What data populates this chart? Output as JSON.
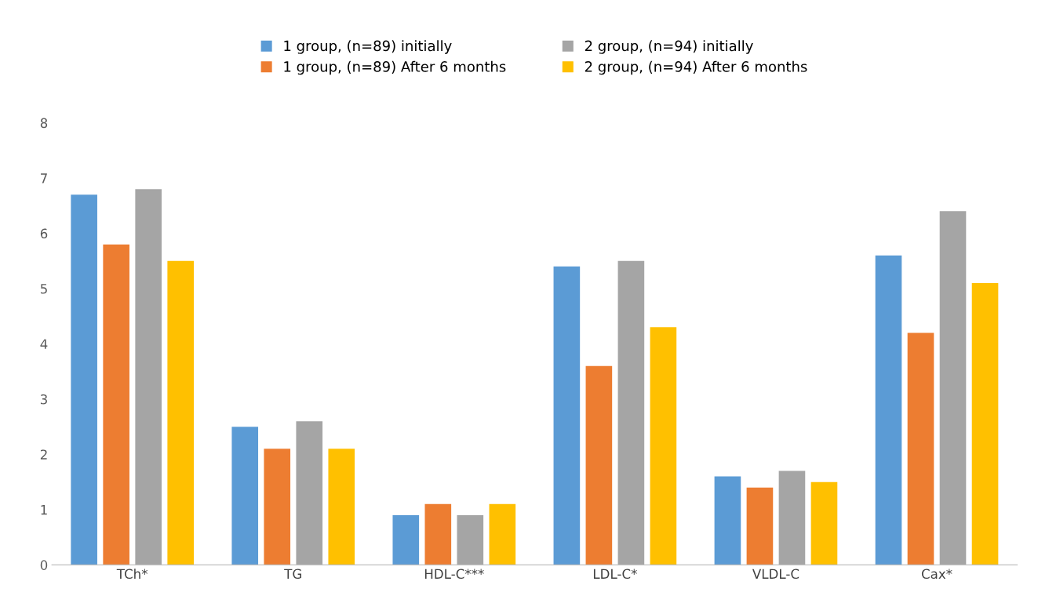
{
  "chart_data": {
    "type": "bar",
    "categories": [
      "TCh*",
      "TG",
      "HDL-C***",
      "LDL-C*",
      "VLDL-C",
      "Cax*"
    ],
    "series": [
      {
        "name": "1 group, (n=89) initially",
        "color": "#5b9bd5",
        "values": [
          6.7,
          2.5,
          0.9,
          5.4,
          1.6,
          5.6
        ]
      },
      {
        "name": "1 group, (n=89) After 6 months",
        "color": "#ed7d31",
        "values": [
          5.8,
          2.1,
          1.1,
          3.6,
          1.4,
          4.2
        ]
      },
      {
        "name": "2 group, (n=94) initially",
        "color": "#a5a5a5",
        "values": [
          6.8,
          2.6,
          0.9,
          5.5,
          1.7,
          6.4
        ]
      },
      {
        "name": "2 group, (n=94) After 6 months",
        "color": "#ffc000",
        "values": [
          5.5,
          2.1,
          1.1,
          4.3,
          1.5,
          5.1
        ]
      }
    ],
    "ylim": [
      0,
      8
    ],
    "yticks": [
      0,
      1,
      2,
      3,
      4,
      5,
      6,
      7,
      8
    ],
    "grid": false,
    "legend": "top"
  }
}
